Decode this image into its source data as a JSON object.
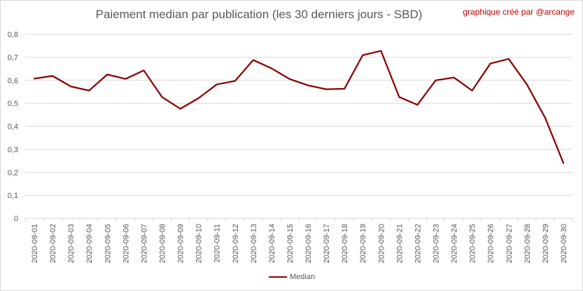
{
  "title": "Paiement median par publication (les 30 derniers jours - SBD)",
  "credit": "graphique créé par @arcange",
  "chart_data": {
    "type": "line",
    "title": "Paiement median par publication (les 30 derniers jours - SBD)",
    "xlabel": "",
    "ylabel": "",
    "ylim": [
      0,
      0.8
    ],
    "y_ticks": [
      "0",
      "0,1",
      "0,2",
      "0,3",
      "0,4",
      "0,5",
      "0,6",
      "0,7",
      "0,8"
    ],
    "grid": true,
    "legend_position": "bottom",
    "categories": [
      "2020-09-01",
      "2020-09-02",
      "2020-09-03",
      "2020-09-04",
      "2020-09-05",
      "2020-09-06",
      "2020-09-07",
      "2020-09-08",
      "2020-09-09",
      "2020-09-10",
      "2020-09-11",
      "2020-09-12",
      "2020-09-13",
      "2020-09-14",
      "2020-09-15",
      "2020-09-16",
      "2020-09-17",
      "2020-09-18",
      "2020-09-19",
      "2020-09-20",
      "2020-09-21",
      "2020-09-22",
      "2020-09-23",
      "2020-09-24",
      "2020-09-25",
      "2020-09-26",
      "2020-09-27",
      "2020-09-28",
      "2020-09-29",
      "2020-09-30"
    ],
    "series": [
      {
        "name": "Median",
        "color": "#8b0000",
        "values": [
          0.607,
          0.619,
          0.573,
          0.555,
          0.625,
          0.606,
          0.643,
          0.527,
          0.476,
          0.522,
          0.582,
          0.597,
          0.688,
          0.652,
          0.605,
          0.578,
          0.561,
          0.563,
          0.709,
          0.728,
          0.527,
          0.493,
          0.6,
          0.612,
          0.555,
          0.673,
          0.693,
          0.582,
          0.437,
          0.24
        ]
      }
    ]
  }
}
